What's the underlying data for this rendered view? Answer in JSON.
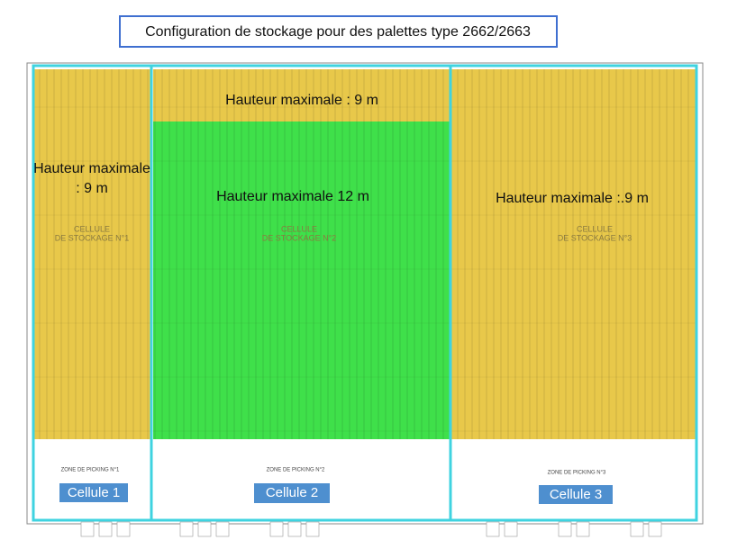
{
  "title": "Configuration de stockage pour des palettes type 2662/2663",
  "zones": [
    {
      "lines": [
        "Hauteur maximale",
        ": 9 m"
      ]
    },
    {
      "lines": [
        "Hauteur maximale : 9 m"
      ]
    },
    {
      "lines": [
        "Hauteur maximale 12 m"
      ]
    },
    {
      "lines": [
        "Hauteur maximale :.9 m"
      ]
    }
  ],
  "cells": [
    {
      "name": "Cellule 1",
      "label": [
        "CELLULE",
        "DE STOCKAGE N°1"
      ],
      "picking": "ZONE DE PICKING N°1"
    },
    {
      "name": "Cellule 2",
      "label": [
        "CELLULE",
        "DE STOCKAGE N°2"
      ],
      "picking": "ZONE DE PICKING N°2"
    },
    {
      "name": "Cellule 3",
      "label": [
        "CELLULE",
        "DE STOCKAGE N°3"
      ],
      "picking": "ZONE DE PICKING N°3"
    }
  ]
}
